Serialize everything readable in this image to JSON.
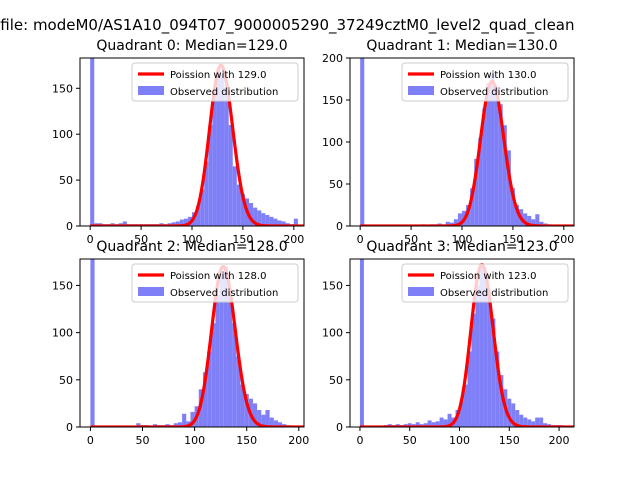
{
  "figure": {
    "suptitle": "n file: modeM0/AS1A10_094T07_9000005290_37249cztM0_level2_quad_clean"
  },
  "colors": {
    "hist": "#7f7ff7",
    "fit": "#ff0000",
    "axis": "#000000"
  },
  "chart_data": [
    {
      "type": "bar",
      "title": "Quadrant 0: Median=129.0",
      "xlim": [
        -10,
        210
      ],
      "ylim": [
        0,
        183
      ],
      "xticks": [
        0,
        50,
        100,
        150,
        200
      ],
      "yticks": [
        0,
        50,
        100,
        150
      ],
      "legend": {
        "placement": "top-right",
        "fit_label": "Poission with 129.0",
        "hist_label": "Observed distribution"
      },
      "bin_width": 4,
      "bins": [
        [
          0,
          183
        ],
        [
          4,
          3
        ],
        [
          8,
          3
        ],
        [
          12,
          2
        ],
        [
          16,
          2
        ],
        [
          20,
          3
        ],
        [
          24,
          2
        ],
        [
          28,
          3
        ],
        [
          32,
          5
        ],
        [
          36,
          2
        ],
        [
          40,
          2
        ],
        [
          44,
          2
        ],
        [
          48,
          2
        ],
        [
          52,
          2
        ],
        [
          56,
          2
        ],
        [
          60,
          2
        ],
        [
          64,
          2
        ],
        [
          68,
          3
        ],
        [
          72,
          2
        ],
        [
          76,
          3
        ],
        [
          80,
          4
        ],
        [
          84,
          5
        ],
        [
          88,
          7
        ],
        [
          92,
          8
        ],
        [
          96,
          10
        ],
        [
          100,
          15
        ],
        [
          104,
          22
        ],
        [
          108,
          40
        ],
        [
          112,
          70
        ],
        [
          116,
          110
        ],
        [
          120,
          145
        ],
        [
          124,
          170
        ],
        [
          128,
          165
        ],
        [
          132,
          150
        ],
        [
          136,
          110
        ],
        [
          140,
          65
        ],
        [
          144,
          45
        ],
        [
          148,
          35
        ],
        [
          152,
          30
        ],
        [
          156,
          25
        ],
        [
          160,
          20
        ],
        [
          164,
          17
        ],
        [
          168,
          14
        ],
        [
          172,
          12
        ],
        [
          176,
          10
        ],
        [
          180,
          8
        ],
        [
          184,
          6
        ],
        [
          188,
          5
        ],
        [
          192,
          3
        ],
        [
          196,
          2
        ],
        [
          200,
          8
        ]
      ],
      "fit": {
        "mean": 129.0,
        "peak": 175
      }
    },
    {
      "type": "bar",
      "title": "Quadrant 1: Median=130.0",
      "xlim": [
        -10,
        210
      ],
      "ylim": [
        0,
        200
      ],
      "xticks": [
        0,
        50,
        100,
        150,
        200
      ],
      "yticks": [
        0,
        50,
        100,
        150,
        200
      ],
      "legend": {
        "placement": "top-right",
        "fit_label": "Poission with 130.0",
        "hist_label": "Observed distribution"
      },
      "bin_width": 4,
      "bins": [
        [
          0,
          200
        ],
        [
          60,
          2
        ],
        [
          64,
          1
        ],
        [
          68,
          2
        ],
        [
          72,
          2
        ],
        [
          76,
          3
        ],
        [
          80,
          2
        ],
        [
          84,
          5
        ],
        [
          88,
          4
        ],
        [
          92,
          8
        ],
        [
          96,
          15
        ],
        [
          100,
          18
        ],
        [
          104,
          25
        ],
        [
          108,
          45
        ],
        [
          112,
          80
        ],
        [
          116,
          105
        ],
        [
          120,
          140
        ],
        [
          124,
          170
        ],
        [
          128,
          180
        ],
        [
          132,
          165
        ],
        [
          136,
          145
        ],
        [
          140,
          120
        ],
        [
          144,
          90
        ],
        [
          148,
          45
        ],
        [
          152,
          25
        ],
        [
          156,
          20
        ],
        [
          160,
          15
        ],
        [
          164,
          12
        ],
        [
          168,
          8
        ],
        [
          172,
          14
        ],
        [
          176,
          5
        ],
        [
          180,
          3
        ],
        [
          184,
          2
        ],
        [
          188,
          1
        ],
        [
          196,
          1
        ]
      ],
      "fit": {
        "mean": 130.0,
        "peak": 172
      }
    },
    {
      "type": "bar",
      "title": "Quadrant 2: Median=128.0",
      "xlim": [
        -10,
        205
      ],
      "ylim": [
        0,
        178
      ],
      "xticks": [
        0,
        50,
        100,
        150,
        200
      ],
      "yticks": [
        0,
        50,
        100,
        150
      ],
      "legend": {
        "placement": "top-right",
        "fit_label": "Poission with 128.0",
        "hist_label": "Observed distribution"
      },
      "bin_width": 4,
      "bins": [
        [
          0,
          178
        ],
        [
          44,
          4
        ],
        [
          48,
          2
        ],
        [
          52,
          2
        ],
        [
          56,
          1
        ],
        [
          60,
          3
        ],
        [
          64,
          2
        ],
        [
          68,
          2
        ],
        [
          72,
          3
        ],
        [
          76,
          2
        ],
        [
          80,
          4
        ],
        [
          84,
          5
        ],
        [
          88,
          14
        ],
        [
          92,
          6
        ],
        [
          96,
          16
        ],
        [
          100,
          22
        ],
        [
          104,
          40
        ],
        [
          108,
          58
        ],
        [
          112,
          80
        ],
        [
          116,
          110
        ],
        [
          120,
          140
        ],
        [
          124,
          165
        ],
        [
          128,
          170
        ],
        [
          132,
          145
        ],
        [
          136,
          110
        ],
        [
          140,
          75
        ],
        [
          144,
          45
        ],
        [
          148,
          35
        ],
        [
          152,
          30
        ],
        [
          156,
          25
        ],
        [
          160,
          18
        ],
        [
          164,
          13
        ],
        [
          168,
          18
        ],
        [
          172,
          10
        ],
        [
          176,
          7
        ],
        [
          180,
          5
        ],
        [
          184,
          3
        ],
        [
          188,
          2
        ],
        [
          192,
          1
        ]
      ],
      "fit": {
        "mean": 128.0,
        "peak": 170
      }
    },
    {
      "type": "bar",
      "title": "Quadrant 3: Median=123.0",
      "xlim": [
        -10,
        215
      ],
      "ylim": [
        0,
        178
      ],
      "xticks": [
        0,
        50,
        100,
        150,
        200
      ],
      "yticks": [
        0,
        50,
        100,
        150
      ],
      "legend": {
        "placement": "top-right",
        "fit_label": "Poission with 123.0",
        "hist_label": "Observed distribution"
      },
      "bin_width": 4,
      "bins": [
        [
          0,
          178
        ],
        [
          24,
          2
        ],
        [
          28,
          3
        ],
        [
          32,
          2
        ],
        [
          36,
          3
        ],
        [
          40,
          2
        ],
        [
          44,
          3
        ],
        [
          48,
          4
        ],
        [
          52,
          3
        ],
        [
          56,
          5
        ],
        [
          60,
          3
        ],
        [
          64,
          4
        ],
        [
          68,
          7
        ],
        [
          72,
          5
        ],
        [
          76,
          6
        ],
        [
          80,
          10
        ],
        [
          84,
          8
        ],
        [
          88,
          14
        ],
        [
          92,
          10
        ],
        [
          96,
          18
        ],
        [
          100,
          28
        ],
        [
          104,
          45
        ],
        [
          108,
          80
        ],
        [
          112,
          120
        ],
        [
          116,
          150
        ],
        [
          120,
          170
        ],
        [
          124,
          165
        ],
        [
          128,
          145
        ],
        [
          132,
          115
        ],
        [
          136,
          80
        ],
        [
          140,
          55
        ],
        [
          144,
          40
        ],
        [
          148,
          30
        ],
        [
          152,
          25
        ],
        [
          156,
          18
        ],
        [
          160,
          13
        ],
        [
          164,
          10
        ],
        [
          168,
          8
        ],
        [
          172,
          6
        ],
        [
          176,
          10
        ],
        [
          180,
          10
        ],
        [
          184,
          4
        ],
        [
          188,
          3
        ],
        [
          192,
          2
        ],
        [
          196,
          2
        ],
        [
          200,
          2
        ]
      ],
      "fit": {
        "mean": 123.0,
        "peak": 172
      }
    }
  ]
}
